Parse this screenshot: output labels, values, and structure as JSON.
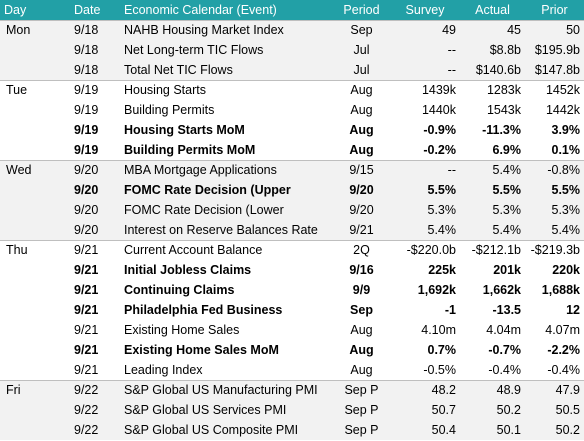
{
  "header": {
    "day": "Day",
    "date": "Date",
    "event": "Economic Calendar (Event)",
    "period": "Period",
    "survey": "Survey",
    "actual": "Actual",
    "prior": "Prior"
  },
  "groups": [
    {
      "day": "Mon",
      "shaded": true,
      "rows": [
        {
          "date": "9/18",
          "event": "NAHB Housing Market Index",
          "period": "Sep",
          "survey": "49",
          "actual": "45",
          "prior": "50",
          "bold": false
        },
        {
          "date": "9/18",
          "event": "Net Long-term TIC Flows",
          "period": "Jul",
          "survey": "--",
          "actual": "$8.8b",
          "prior": "$195.9b",
          "bold": false
        },
        {
          "date": "9/18",
          "event": "Total Net TIC Flows",
          "period": "Jul",
          "survey": "--",
          "actual": "$140.6b",
          "prior": "$147.8b",
          "bold": false
        }
      ]
    },
    {
      "day": "Tue",
      "shaded": false,
      "rows": [
        {
          "date": "9/19",
          "event": "Housing Starts",
          "period": "Aug",
          "survey": "1439k",
          "actual": "1283k",
          "prior": "1452k",
          "bold": false
        },
        {
          "date": "9/19",
          "event": "Building Permits",
          "period": "Aug",
          "survey": "1440k",
          "actual": "1543k",
          "prior": "1442k",
          "bold": false
        },
        {
          "date": "9/19",
          "event": "Housing Starts MoM",
          "period": "Aug",
          "survey": "-0.9%",
          "actual": "-11.3%",
          "prior": "3.9%",
          "bold": true
        },
        {
          "date": "9/19",
          "event": "Building Permits MoM",
          "period": "Aug",
          "survey": "-0.2%",
          "actual": "6.9%",
          "prior": "0.1%",
          "bold": true
        }
      ]
    },
    {
      "day": "Wed",
      "shaded": true,
      "rows": [
        {
          "date": "9/20",
          "event": "MBA Mortgage Applications",
          "period": "9/15",
          "survey": "--",
          "actual": "5.4%",
          "prior": "-0.8%",
          "bold": false
        },
        {
          "date": "9/20",
          "event": "FOMC Rate Decision (Upper",
          "period": "9/20",
          "survey": "5.5%",
          "actual": "5.5%",
          "prior": "5.5%",
          "bold": true
        },
        {
          "date": "9/20",
          "event": "FOMC Rate Decision (Lower",
          "period": "9/20",
          "survey": "5.3%",
          "actual": "5.3%",
          "prior": "5.3%",
          "bold": false
        },
        {
          "date": "9/20",
          "event": "Interest on Reserve Balances Rate",
          "period": "9/21",
          "survey": "5.4%",
          "actual": "5.4%",
          "prior": "5.4%",
          "bold": false
        }
      ]
    },
    {
      "day": "Thu",
      "shaded": false,
      "rows": [
        {
          "date": "9/21",
          "event": "Current Account Balance",
          "period": "2Q",
          "survey": "-$220.0b",
          "actual": "-$212.1b",
          "prior": "-$219.3b",
          "bold": false
        },
        {
          "date": "9/21",
          "event": "Initial Jobless Claims",
          "period": "9/16",
          "survey": "225k",
          "actual": "201k",
          "prior": "220k",
          "bold": true
        },
        {
          "date": "9/21",
          "event": "Continuing Claims",
          "period": "9/9",
          "survey": "1,692k",
          "actual": "1,662k",
          "prior": "1,688k",
          "bold": true
        },
        {
          "date": "9/21",
          "event": "Philadelphia Fed Business",
          "period": "Sep",
          "survey": "-1",
          "actual": "-13.5",
          "prior": "12",
          "bold": true
        },
        {
          "date": "9/21",
          "event": "Existing Home Sales",
          "period": "Aug",
          "survey": "4.10m",
          "actual": "4.04m",
          "prior": "4.07m",
          "bold": false
        },
        {
          "date": "9/21",
          "event": "Existing Home Sales MoM",
          "period": "Aug",
          "survey": "0.7%",
          "actual": "-0.7%",
          "prior": "-2.2%",
          "bold": true
        },
        {
          "date": "9/21",
          "event": "Leading Index",
          "period": "Aug",
          "survey": "-0.5%",
          "actual": "-0.4%",
          "prior": "-0.4%",
          "bold": false
        }
      ]
    },
    {
      "day": "Fri",
      "shaded": true,
      "rows": [
        {
          "date": "9/22",
          "event": "S&P Global US Manufacturing PMI",
          "period": "Sep P",
          "survey": "48.2",
          "actual": "48.9",
          "prior": "47.9",
          "bold": false
        },
        {
          "date": "9/22",
          "event": "S&P Global US Services PMI",
          "period": "Sep P",
          "survey": "50.7",
          "actual": "50.2",
          "prior": "50.5",
          "bold": false
        },
        {
          "date": "9/22",
          "event": "S&P Global US Composite PMI",
          "period": "Sep P",
          "survey": "50.4",
          "actual": "50.1",
          "prior": "50.2",
          "bold": false
        }
      ]
    }
  ]
}
